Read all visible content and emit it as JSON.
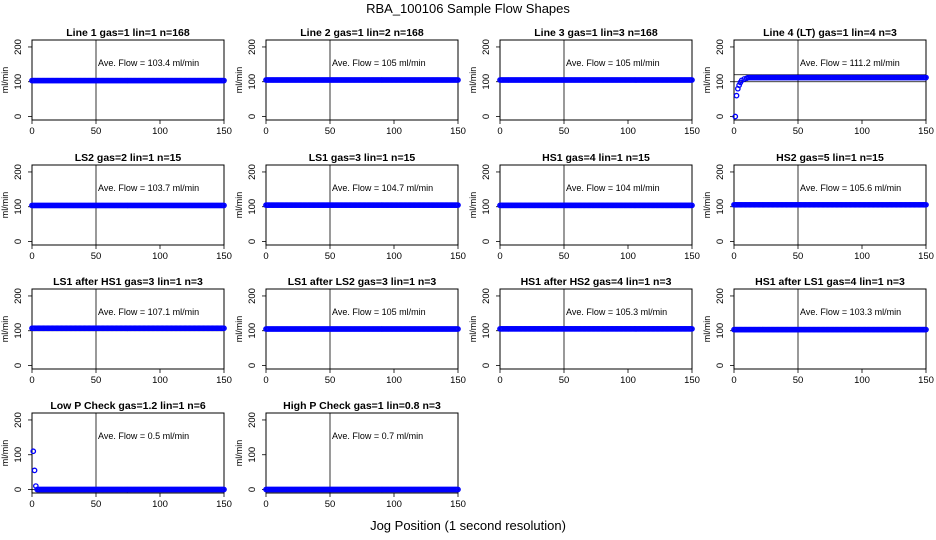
{
  "figure": {
    "title": "RBA_100106  Sample Flow Shapes",
    "xlabel": "Jog Position (1 second resolution)"
  },
  "chart_data": [
    {
      "type": "scatter",
      "title": "Line 1 gas=1 lin=1 n=168",
      "ylabel": "ml/min",
      "annotation": "Ave. Flow =  103.4  ml/min",
      "xlim": [
        0,
        150
      ],
      "ylim": [
        -10,
        220
      ],
      "xticks": [
        0,
        50,
        100,
        150
      ],
      "yticks": [
        0,
        100,
        200
      ],
      "vline": 50,
      "hlines": [
        100
      ],
      "baseline": 103.4,
      "point_color": "#0000ff"
    },
    {
      "type": "scatter",
      "title": "Line 2 gas=1 lin=2 n=168",
      "ylabel": "ml/min",
      "annotation": "Ave. Flow =  105  ml/min",
      "xlim": [
        0,
        150
      ],
      "ylim": [
        -10,
        220
      ],
      "xticks": [
        0,
        50,
        100,
        150
      ],
      "yticks": [
        0,
        100,
        200
      ],
      "vline": 50,
      "hlines": [
        100
      ],
      "baseline": 105,
      "point_color": "#0000ff"
    },
    {
      "type": "scatter",
      "title": "Line 3 gas=1 lin=3 n=168",
      "ylabel": "ml/min",
      "annotation": "Ave. Flow =  105  ml/min",
      "xlim": [
        0,
        150
      ],
      "ylim": [
        -10,
        220
      ],
      "xticks": [
        0,
        50,
        100,
        150
      ],
      "yticks": [
        0,
        100,
        200
      ],
      "vline": 50,
      "hlines": [
        100
      ],
      "baseline": 105,
      "point_color": "#0000ff"
    },
    {
      "type": "scatter",
      "title": "Line 4 (LT) gas=1 lin=4 n=3",
      "ylabel": "ml/min",
      "annotation": "Ave. Flow =  111.2  ml/min",
      "xlim": [
        0,
        150
      ],
      "ylim": [
        -10,
        220
      ],
      "xticks": [
        0,
        50,
        100,
        150
      ],
      "yticks": [
        0,
        100,
        200
      ],
      "vline": 50,
      "hlines": [
        100,
        120
      ],
      "baseline": 112,
      "point_color": "#0000ff",
      "start_points": [
        [
          1,
          0
        ],
        [
          2,
          60
        ],
        [
          3,
          80
        ],
        [
          4,
          90
        ],
        [
          5,
          98
        ],
        [
          6,
          104
        ],
        [
          8,
          108
        ],
        [
          10,
          110
        ]
      ]
    },
    {
      "type": "scatter",
      "title": "LS2 gas=2 lin=1 n=15",
      "ylabel": "ml/min",
      "annotation": "Ave. Flow =  103.7  ml/min",
      "xlim": [
        0,
        150
      ],
      "ylim": [
        -10,
        220
      ],
      "xticks": [
        0,
        50,
        100,
        150
      ],
      "yticks": [
        0,
        100,
        200
      ],
      "vline": 50,
      "hlines": [
        100
      ],
      "baseline": 103.7,
      "point_color": "#0000ff"
    },
    {
      "type": "scatter",
      "title": "LS1 gas=3 lin=1 n=15",
      "ylabel": "ml/min",
      "annotation": "Ave. Flow =  104.7  ml/min",
      "xlim": [
        0,
        150
      ],
      "ylim": [
        -10,
        220
      ],
      "xticks": [
        0,
        50,
        100,
        150
      ],
      "yticks": [
        0,
        100,
        200
      ],
      "vline": 50,
      "hlines": [
        100
      ],
      "baseline": 104.7,
      "point_color": "#0000ff"
    },
    {
      "type": "scatter",
      "title": "HS1 gas=4 lin=1 n=15",
      "ylabel": "ml/min",
      "annotation": "Ave. Flow =  104  ml/min",
      "xlim": [
        0,
        150
      ],
      "ylim": [
        -10,
        220
      ],
      "xticks": [
        0,
        50,
        100,
        150
      ],
      "yticks": [
        0,
        100,
        200
      ],
      "vline": 50,
      "hlines": [
        100
      ],
      "baseline": 104,
      "point_color": "#0000ff"
    },
    {
      "type": "scatter",
      "title": "HS2 gas=5 lin=1 n=15",
      "ylabel": "ml/min",
      "annotation": "Ave. Flow =  105.6  ml/min",
      "xlim": [
        0,
        150
      ],
      "ylim": [
        -10,
        220
      ],
      "xticks": [
        0,
        50,
        100,
        150
      ],
      "yticks": [
        0,
        100,
        200
      ],
      "vline": 50,
      "hlines": [
        100
      ],
      "baseline": 105.6,
      "point_color": "#0000ff"
    },
    {
      "type": "scatter",
      "title": "LS1 after HS1 gas=3 lin=1 n=3",
      "ylabel": "ml/min",
      "annotation": "Ave. Flow =  107.1  ml/min",
      "xlim": [
        0,
        150
      ],
      "ylim": [
        -10,
        220
      ],
      "xticks": [
        0,
        50,
        100,
        150
      ],
      "yticks": [
        0,
        100,
        200
      ],
      "vline": 50,
      "hlines": [
        100
      ],
      "baseline": 107.1,
      "point_color": "#0000ff"
    },
    {
      "type": "scatter",
      "title": "LS1 after LS2 gas=3 lin=1 n=3",
      "ylabel": "ml/min",
      "annotation": "Ave. Flow =  105  ml/min",
      "xlim": [
        0,
        150
      ],
      "ylim": [
        -10,
        220
      ],
      "xticks": [
        0,
        50,
        100,
        150
      ],
      "yticks": [
        0,
        100,
        200
      ],
      "vline": 50,
      "hlines": [
        100
      ],
      "baseline": 105,
      "point_color": "#0000ff"
    },
    {
      "type": "scatter",
      "title": "HS1 after HS2 gas=4 lin=1 n=3",
      "ylabel": "ml/min",
      "annotation": "Ave. Flow =  105.3  ml/min",
      "xlim": [
        0,
        150
      ],
      "ylim": [
        -10,
        220
      ],
      "xticks": [
        0,
        50,
        100,
        150
      ],
      "yticks": [
        0,
        100,
        200
      ],
      "vline": 50,
      "hlines": [
        100
      ],
      "baseline": 105.3,
      "point_color": "#0000ff"
    },
    {
      "type": "scatter",
      "title": "HS1 after LS1 gas=4 lin=1 n=3",
      "ylabel": "ml/min",
      "annotation": "Ave. Flow =  103.3  ml/min",
      "xlim": [
        0,
        150
      ],
      "ylim": [
        -10,
        220
      ],
      "xticks": [
        0,
        50,
        100,
        150
      ],
      "yticks": [
        0,
        100,
        200
      ],
      "vline": 50,
      "hlines": [
        100
      ],
      "baseline": 103.3,
      "point_color": "#0000ff"
    },
    {
      "type": "scatter",
      "title": "Low P Check gas=1.2 lin=1 n=6",
      "ylabel": "ml/min",
      "annotation": "Ave. Flow =  0.5  ml/min",
      "xlim": [
        0,
        150
      ],
      "ylim": [
        -10,
        220
      ],
      "xticks": [
        0,
        50,
        100,
        150
      ],
      "yticks": [
        0,
        100,
        200
      ],
      "vline": 50,
      "hlines": [
        0
      ],
      "baseline": 0,
      "point_color": "#0000ff",
      "start_points": [
        [
          1,
          110
        ],
        [
          2,
          55
        ],
        [
          3,
          10
        ]
      ]
    },
    {
      "type": "scatter",
      "title": "High P Check gas=1 lin=0.8 n=3",
      "ylabel": "ml/min",
      "annotation": "Ave. Flow =  0.7  ml/min",
      "xlim": [
        0,
        150
      ],
      "ylim": [
        -10,
        220
      ],
      "xticks": [
        0,
        50,
        100,
        150
      ],
      "yticks": [
        0,
        100,
        200
      ],
      "vline": 50,
      "hlines": [
        0
      ],
      "baseline": 0,
      "point_color": "#0000ff"
    }
  ]
}
